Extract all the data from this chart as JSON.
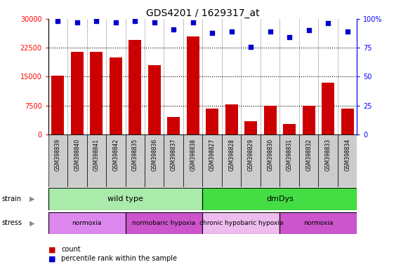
{
  "title": "GDS4201 / 1629317_at",
  "samples": [
    "GSM398839",
    "GSM398840",
    "GSM398841",
    "GSM398842",
    "GSM398835",
    "GSM398836",
    "GSM398837",
    "GSM398838",
    "GSM398827",
    "GSM398828",
    "GSM398829",
    "GSM398830",
    "GSM398831",
    "GSM398832",
    "GSM398833",
    "GSM398834"
  ],
  "counts": [
    15200,
    21500,
    21500,
    20000,
    24500,
    18000,
    4500,
    25500,
    6700,
    7800,
    3500,
    7500,
    2800,
    7500,
    13500,
    6700
  ],
  "percentiles": [
    98,
    97,
    98,
    97,
    98,
    97,
    91,
    97,
    88,
    89,
    76,
    89,
    84,
    90,
    96,
    89
  ],
  "bar_color": "#CC0000",
  "dot_color": "#0000CC",
  "ylim_left": [
    0,
    30000
  ],
  "ylim_right": [
    0,
    100
  ],
  "yticks_left": [
    0,
    7500,
    15000,
    22500,
    30000
  ],
  "yticks_right": [
    0,
    25,
    50,
    75,
    100
  ],
  "strain_data": [
    {
      "text": "wild type",
      "start": 0,
      "end": 8,
      "color": "#AAEAAA"
    },
    {
      "text": "dmDys",
      "start": 8,
      "end": 16,
      "color": "#44DD44"
    }
  ],
  "stress_data": [
    {
      "text": "normoxia",
      "start": 0,
      "end": 4,
      "color": "#DD88EE"
    },
    {
      "text": "normobaric hypoxia",
      "start": 4,
      "end": 8,
      "color": "#CC55CC"
    },
    {
      "text": "chronic hypobaric hypoxia",
      "start": 8,
      "end": 12,
      "color": "#EEBBEE"
    },
    {
      "text": "normoxia",
      "start": 12,
      "end": 16,
      "color": "#CC55CC"
    }
  ],
  "bar_color_legend": "#CC0000",
  "dot_color_legend": "#0000CC"
}
